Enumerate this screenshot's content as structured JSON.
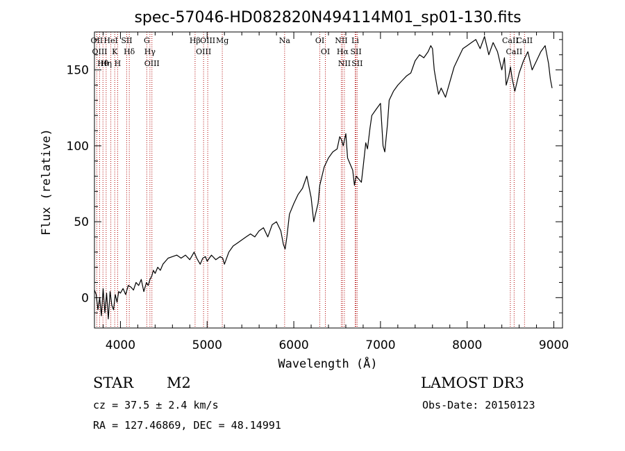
{
  "chart_data": {
    "type": "line",
    "title": "spec-57046-HD082820N494114M01_sp01-130.fits",
    "xlabel": "Wavelength (Å)",
    "ylabel": "Flux (relative)",
    "xlim": [
      3700,
      9100
    ],
    "ylim": [
      -20,
      175
    ],
    "xticks": [
      4000,
      5000,
      6000,
      7000,
      8000,
      9000
    ],
    "yticks": [
      0,
      50,
      100,
      150
    ],
    "grid": false,
    "series": [
      {
        "x": [
          3700,
          3720,
          3740,
          3760,
          3780,
          3800,
          3820,
          3840,
          3860,
          3880,
          3900,
          3920,
          3940,
          3960,
          3980,
          4000,
          4030,
          4060,
          4090,
          4120,
          4150,
          4180,
          4210,
          4240,
          4270,
          4300,
          4320,
          4340,
          4360,
          4380,
          4400,
          4430,
          4460,
          4490,
          4520,
          4550,
          4600,
          4650,
          4700,
          4750,
          4800,
          4850,
          4880,
          4900,
          4920,
          4950,
          4980,
          5000,
          5050,
          5100,
          5150,
          5180,
          5200,
          5250,
          5300,
          5350,
          5400,
          5450,
          5500,
          5550,
          5600,
          5650,
          5700,
          5750,
          5800,
          5850,
          5880,
          5900,
          5920,
          5950,
          6000,
          6050,
          6100,
          6150,
          6200,
          6230,
          6250,
          6280,
          6300,
          6350,
          6400,
          6450,
          6500,
          6530,
          6550,
          6570,
          6600,
          6620,
          6650,
          6680,
          6700,
          6720,
          6750,
          6780,
          6800,
          6830,
          6850,
          6880,
          6900,
          6950,
          7000,
          7030,
          7050,
          7080,
          7100,
          7150,
          7200,
          7250,
          7300,
          7350,
          7400,
          7450,
          7500,
          7550,
          7580,
          7600,
          7620,
          7650,
          7670,
          7700,
          7750,
          7800,
          7850,
          7900,
          7950,
          8000,
          8050,
          8100,
          8150,
          8200,
          8250,
          8300,
          8350,
          8400,
          8430,
          8450,
          8480,
          8500,
          8520,
          8550,
          8600,
          8650,
          8700,
          8750,
          8800,
          8850,
          8900,
          8920,
          8940,
          8960,
          8980
        ],
        "y": [
          5,
          2,
          -8,
          0,
          -12,
          6,
          -10,
          3,
          -14,
          4,
          -5,
          -8,
          2,
          -3,
          4,
          3,
          6,
          2,
          8,
          7,
          5,
          10,
          8,
          12,
          4,
          10,
          8,
          12,
          14,
          18,
          16,
          20,
          18,
          22,
          24,
          26,
          27,
          28,
          26,
          28,
          25,
          30,
          26,
          24,
          22,
          26,
          27,
          24,
          28,
          25,
          27,
          26,
          22,
          30,
          34,
          36,
          38,
          40,
          42,
          40,
          44,
          46,
          40,
          48,
          50,
          44,
          35,
          32,
          40,
          55,
          62,
          68,
          72,
          80,
          66,
          50,
          55,
          62,
          74,
          86,
          92,
          96,
          98,
          106,
          104,
          100,
          108,
          92,
          88,
          84,
          74,
          80,
          78,
          76,
          86,
          102,
          98,
          112,
          120,
          124,
          128,
          100,
          96,
          114,
          130,
          136,
          140,
          143,
          146,
          148,
          156,
          160,
          158,
          162,
          166,
          164,
          150,
          140,
          134,
          138,
          132,
          142,
          152,
          158,
          164,
          166,
          168,
          170,
          164,
          172,
          160,
          168,
          162,
          150,
          158,
          140,
          146,
          152,
          144,
          136,
          148,
          156,
          162,
          150,
          156,
          162,
          166,
          160,
          154,
          144,
          138
        ]
      }
    ],
    "emission_lines": [
      {
        "label": "Hθ",
        "wavelength": 3798
      },
      {
        "label": "OII",
        "wavelength": 3727
      },
      {
        "label": "OIII",
        "wavelength": 3760
      },
      {
        "label": "K",
        "wavelength": 3934
      },
      {
        "label": "HeI",
        "wavelength": 3889
      },
      {
        "label": "Hη",
        "wavelength": 3835
      },
      {
        "label": "SII",
        "wavelength": 4072
      },
      {
        "label": "H",
        "wavelength": 3968
      },
      {
        "label": "Hδ",
        "wavelength": 4102
      },
      {
        "label": "OIII",
        "wavelength": 4363
      },
      {
        "label": "Hγ",
        "wavelength": 4340
      },
      {
        "label": "G",
        "wavelength": 4304
      },
      {
        "label": "Hβ",
        "wavelength": 4861
      },
      {
        "label": "OIII",
        "wavelength": 4959
      },
      {
        "label": "OIII",
        "wavelength": 5007
      },
      {
        "label": "Mg",
        "wavelength": 5175
      },
      {
        "label": "Na",
        "wavelength": 5894
      },
      {
        "label": "OI",
        "wavelength": 6300
      },
      {
        "label": "OI",
        "wavelength": 6364
      },
      {
        "label": "Hα",
        "wavelength": 6563
      },
      {
        "label": "NII",
        "wavelength": 6548
      },
      {
        "label": "NII",
        "wavelength": 6584
      },
      {
        "label": "SII",
        "wavelength": 6717
      },
      {
        "label": "Li",
        "wavelength": 6708
      },
      {
        "label": "SII",
        "wavelength": 6731
      },
      {
        "label": "CaII",
        "wavelength": 8498
      },
      {
        "label": "CaII",
        "wavelength": 8542
      },
      {
        "label": "CaII",
        "wavelength": 8662
      }
    ]
  },
  "info": {
    "classification": "STAR",
    "subclass": "M2",
    "survey": "LAMOST DR3",
    "redshift": "cz = 37.5 ± 2.4 km/s",
    "obs_date": "Obs-Date: 20150123",
    "coords": "RA = 127.46869, DEC =  48.14991"
  }
}
